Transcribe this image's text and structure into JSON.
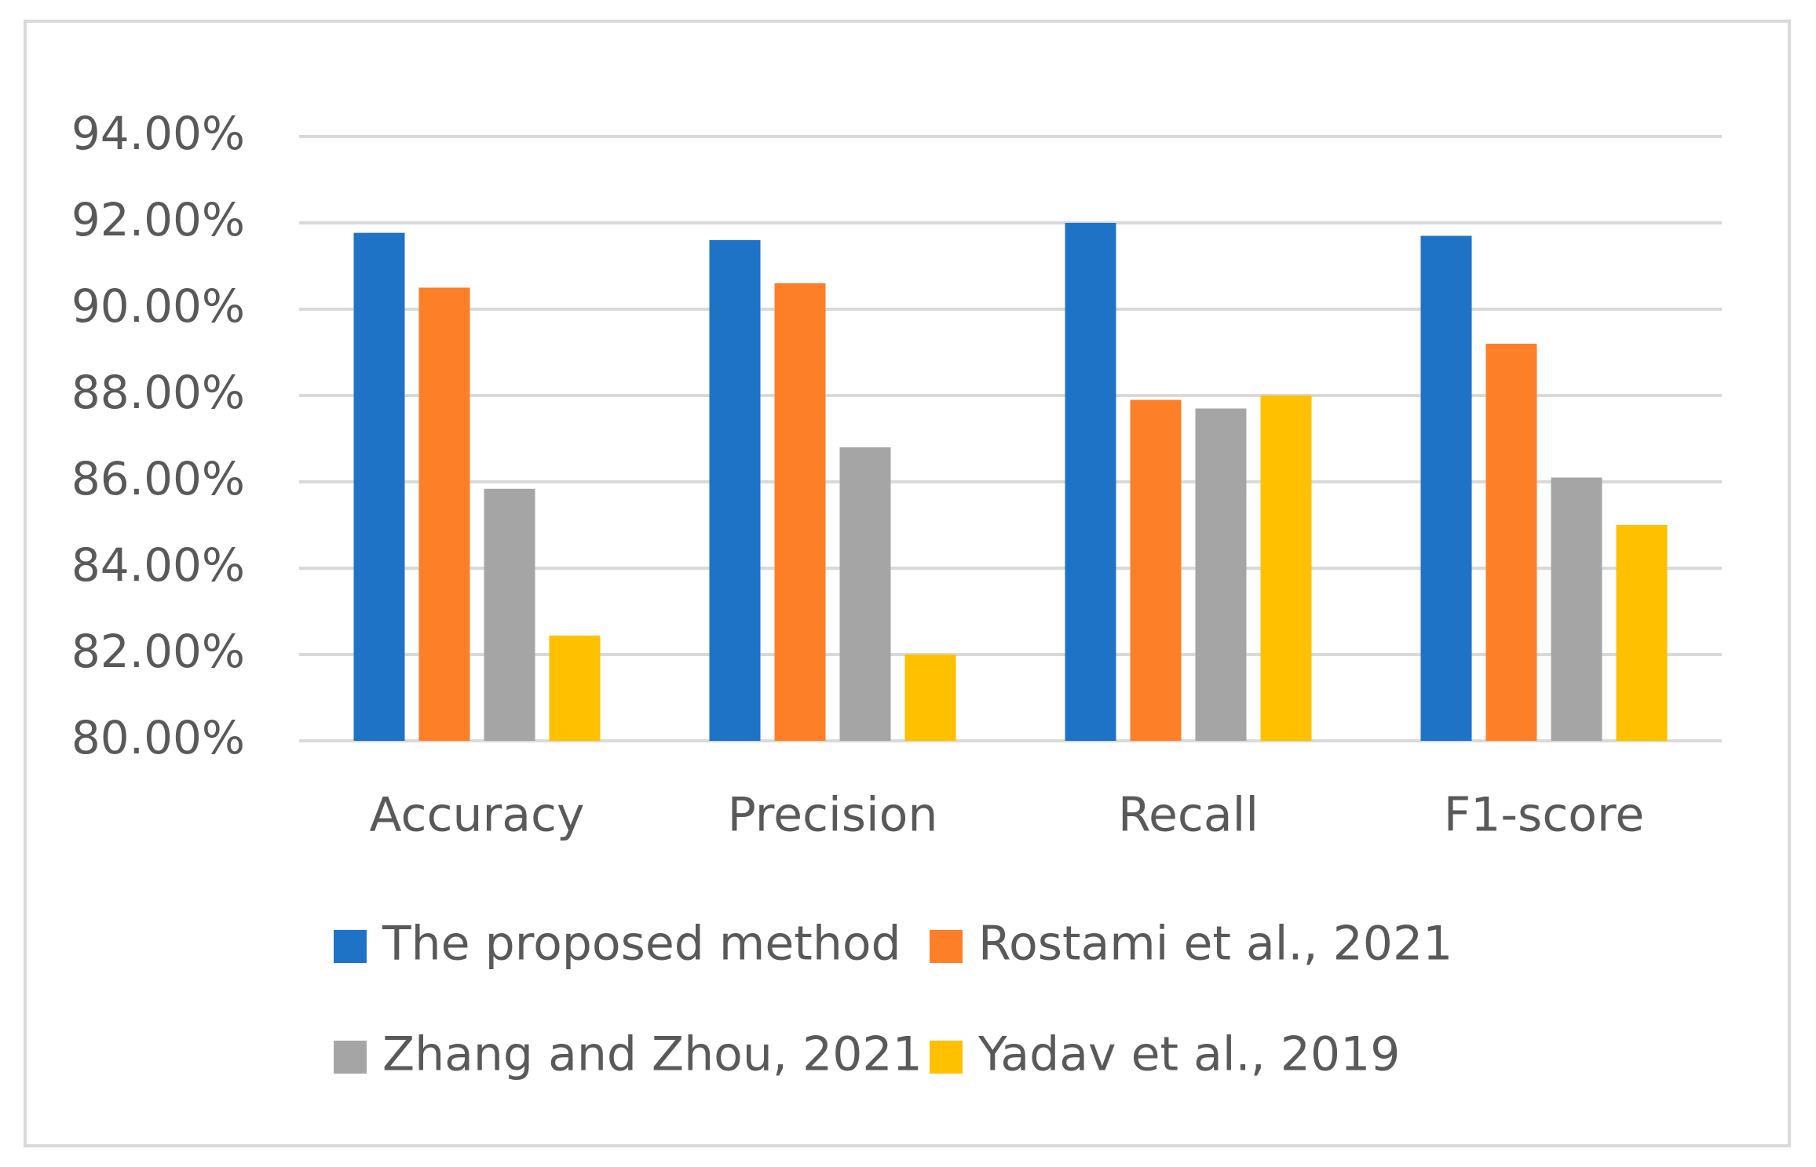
{
  "chart_data": {
    "type": "bar",
    "categories": [
      "Accuracy",
      "Precision",
      "Recall",
      "F1-score"
    ],
    "series": [
      {
        "name": "The proposed method",
        "color": "#1f73c7",
        "values": [
          91.77,
          91.6,
          92.0,
          91.7
        ]
      },
      {
        "name": "Rostami et al., 2021",
        "color": "#fd7f28",
        "values": [
          90.5,
          90.6,
          87.9,
          89.2
        ]
      },
      {
        "name": "Zhang and Zhou, 2021",
        "color": "#a5a5a5",
        "values": [
          85.84,
          86.8,
          87.7,
          86.1
        ]
      },
      {
        "name": "Yadav et al., 2019",
        "color": "#ffc000",
        "values": [
          82.44,
          82.0,
          88.0,
          85.0
        ]
      }
    ],
    "ylim": [
      80,
      94
    ],
    "yticks": [
      {
        "value": 80,
        "label": "80.00%"
      },
      {
        "value": 82,
        "label": "82.00%"
      },
      {
        "value": 84,
        "label": "84.00%"
      },
      {
        "value": 86,
        "label": "86.00%"
      },
      {
        "value": 88,
        "label": "88.00%"
      },
      {
        "value": 90,
        "label": "90.00%"
      },
      {
        "value": 92,
        "label": "92.00%"
      },
      {
        "value": 94,
        "label": "94.00%"
      }
    ],
    "grid": true,
    "legend": "bottom"
  }
}
